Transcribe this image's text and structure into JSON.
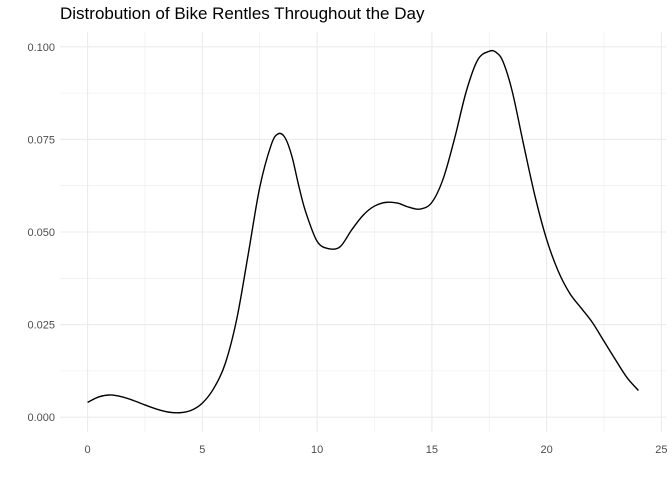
{
  "chart_data": {
    "type": "line",
    "title": "Distrobution of Bike Rentles Throughout the Day",
    "xlabel": "",
    "ylabel": "",
    "xlim": [
      -1.2,
      25.2
    ],
    "ylim": [
      -0.004,
      0.104
    ],
    "x_ticks": [
      0,
      5,
      10,
      15,
      20,
      25
    ],
    "x_tick_labels": [
      "0",
      "5",
      "10",
      "15",
      "20",
      "25"
    ],
    "y_ticks": [
      0,
      0.025,
      0.05,
      0.075,
      0.1
    ],
    "y_tick_labels": [
      "0.000",
      "0.025",
      "0.050",
      "0.075",
      "0.100"
    ],
    "x_minor_ticks": [
      2.5,
      7.5,
      12.5,
      17.5,
      22.5
    ],
    "y_minor_ticks": [
      0.0125,
      0.0375,
      0.0625,
      0.0875
    ],
    "grid": true,
    "legend": "none",
    "line_color": "#000000",
    "grid_color": "#ebebeb",
    "series": [
      {
        "x": [
          0,
          0.5,
          1,
          1.5,
          2,
          2.5,
          3,
          3.5,
          4,
          4.5,
          5,
          5.5,
          6,
          6.5,
          7,
          7.5,
          8,
          8.3,
          8.6,
          8.9,
          9.2,
          9.5,
          10,
          10.5,
          11,
          11.5,
          12,
          12.5,
          13,
          13.5,
          14,
          14.5,
          15,
          15.5,
          16,
          16.5,
          17,
          17.5,
          17.8,
          18.1,
          18.5,
          19,
          19.5,
          20,
          20.5,
          21,
          21.5,
          22,
          22.5,
          23,
          23.5,
          24
        ],
        "y": [
          0.004,
          0.0055,
          0.006,
          0.0055,
          0.0045,
          0.0033,
          0.0022,
          0.0014,
          0.0012,
          0.0018,
          0.0038,
          0.0078,
          0.0145,
          0.0265,
          0.044,
          0.062,
          0.0735,
          0.0765,
          0.0755,
          0.0705,
          0.0625,
          0.0555,
          0.0475,
          0.0455,
          0.046,
          0.0505,
          0.0545,
          0.057,
          0.058,
          0.0578,
          0.0567,
          0.0562,
          0.058,
          0.0645,
          0.0755,
          0.088,
          0.0965,
          0.0988,
          0.0985,
          0.096,
          0.088,
          0.0735,
          0.0595,
          0.048,
          0.0395,
          0.0335,
          0.0295,
          0.0255,
          0.0205,
          0.0155,
          0.0107,
          0.0072
        ]
      }
    ]
  }
}
